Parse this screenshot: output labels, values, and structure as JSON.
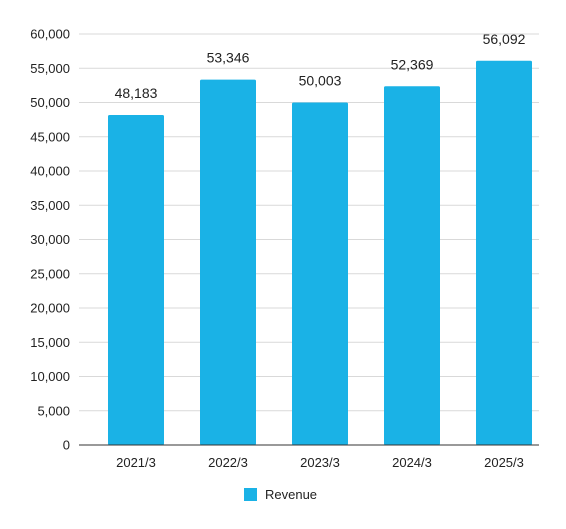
{
  "chart_data": {
    "type": "bar",
    "categories": [
      "2021/3",
      "2022/3",
      "2023/3",
      "2024/3",
      "2025/3"
    ],
    "series": [
      {
        "name": "Revenue",
        "values": [
          48183,
          53346,
          50003,
          52369,
          56092
        ],
        "color": "#1ab2e6"
      }
    ],
    "value_labels": [
      "48,183",
      "53,346",
      "50,003",
      "52,369",
      "56,092"
    ],
    "y_ticks": [
      "0",
      "5,000",
      "10,000",
      "15,000",
      "20,000",
      "25,000",
      "30,000",
      "35,000",
      "40,000",
      "45,000",
      "50,000",
      "55,000",
      "60,000"
    ],
    "ylim": [
      0,
      60000
    ],
    "y_step": 5000,
    "grid": true,
    "legend_position": "bottom",
    "colors": {
      "bar": "#1ab2e6",
      "grid": "#d9d9d9",
      "axis": "#333333",
      "text": "#222222"
    }
  }
}
